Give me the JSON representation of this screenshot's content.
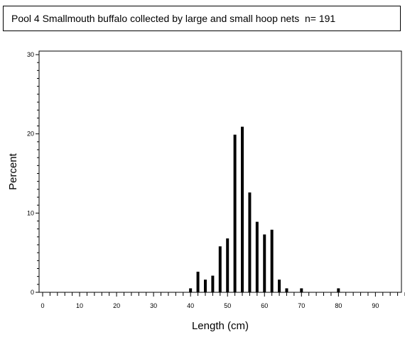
{
  "chart_data": {
    "type": "bar",
    "title": "Pool 4 Smallmouth buffalo collected by large and small hoop nets  n= 191",
    "xlabel": "Length (cm)",
    "ylabel": "Percent",
    "xlim": [
      0,
      98
    ],
    "ylim": [
      0,
      30
    ],
    "x_ticks": [
      0,
      10,
      20,
      30,
      40,
      50,
      60,
      70,
      80,
      90
    ],
    "y_ticks": [
      0,
      10,
      20,
      30
    ],
    "x_minor_step": 2,
    "grid": false,
    "legend": "none",
    "bar_color": "#000000",
    "x": [
      40,
      42,
      44,
      46,
      48,
      50,
      52,
      54,
      56,
      58,
      60,
      62,
      64,
      66,
      70,
      80
    ],
    "values": [
      0.5,
      2.6,
      1.6,
      2.1,
      5.8,
      6.8,
      19.9,
      20.9,
      12.6,
      8.9,
      7.3,
      7.9,
      1.6,
      0.5,
      0.5,
      0.5
    ]
  }
}
